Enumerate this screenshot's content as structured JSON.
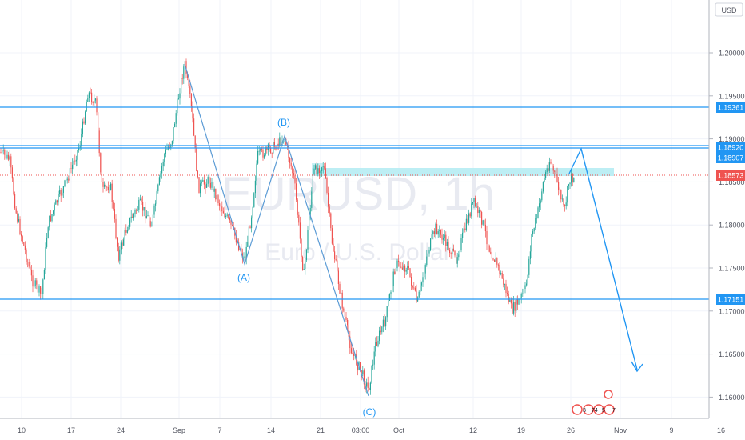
{
  "watermark": {
    "symbol": "EURUSD, 1h",
    "name": "Euro / U.S. Dollar"
  },
  "price_axis": {
    "currency_label": "USD",
    "ticks": [
      "1.20000",
      "1.19500",
      "1.19000",
      "1.18500",
      "1.18000",
      "1.17500",
      "1.17000",
      "1.16500",
      "1.16000"
    ]
  },
  "time_axis": {
    "ticks": [
      "10",
      "17",
      "24",
      "Sep",
      "7",
      "14",
      "21",
      "03:00",
      "Oct",
      "12",
      "19",
      "26",
      "Nov",
      "9",
      "16"
    ]
  },
  "horizontal_levels": [
    {
      "label": "1.19361",
      "value": 1.19361
    },
    {
      "label": "1.18920",
      "value": 1.1892
    },
    {
      "label": "1.18907",
      "value": 1.18907
    },
    {
      "label": "1.17151",
      "value": 1.17151
    }
  ],
  "last_price": {
    "label": "1.18573",
    "value": 1.18573
  },
  "wave_labels": [
    "(A)",
    "(B)",
    "(C)"
  ],
  "colors": {
    "up": "#26a69a",
    "down": "#ef5350",
    "drawing": "#2196f3",
    "zone": "#b2ebf2",
    "last_price_bg": "#ef5350",
    "axis_text": "#50535e",
    "grid": "#f0f3fa"
  },
  "event_badges": [
    "3",
    "74",
    "5",
    "7"
  ]
}
